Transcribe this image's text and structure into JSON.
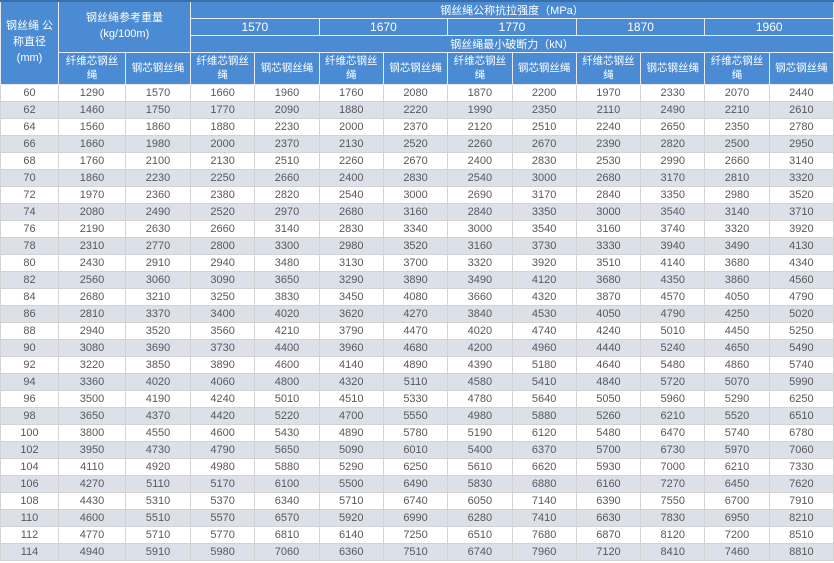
{
  "headers": {
    "diameter": "钢丝绳 公称直径 (mm)",
    "weight": "钢丝绳参考重量 (kg/100m)",
    "strength_title": "钢丝绳公称抗拉强度（MPa）",
    "strengths": [
      "1570",
      "1670",
      "1770",
      "1870",
      "1960"
    ],
    "breaking_title": "钢丝绳最小破断力（kN）",
    "fiber_core": "纤维芯钢丝绳",
    "steel_core": "钢芯钢丝绳"
  },
  "colors": {
    "header_bg": "#4B8BD3",
    "header_text": "#FFFFFF",
    "row_alt_bg": "#DBE0E9",
    "body_text": "#595959",
    "grid_line": "#D3D3D3",
    "top_edge": "#3A6FA9"
  },
  "chart_data": {
    "type": "table",
    "title": "钢丝绳公称抗拉强度（MPa）／钢丝绳最小破断力（kN）",
    "columns": [
      "钢丝绳 公称直径 (mm)",
      "参考重量 纤维芯钢丝绳 (kg/100m)",
      "参考重量 钢芯钢丝绳 (kg/100m)",
      "1570 纤维芯钢丝绳 (kN)",
      "1570 钢芯钢丝绳 (kN)",
      "1670 纤维芯钢丝绳 (kN)",
      "1670 钢芯钢丝绳 (kN)",
      "1770 纤维芯钢丝绳 (kN)",
      "1770 钢芯钢丝绳 (kN)",
      "1870 纤维芯钢丝绳 (kN)",
      "1870 钢芯钢丝绳 (kN)",
      "1960 纤维芯钢丝绳 (kN)",
      "1960 钢芯钢丝绳 (kN)"
    ],
    "rows": [
      [
        60,
        1290,
        1570,
        1660,
        1960,
        1760,
        2080,
        1870,
        2200,
        1970,
        2330,
        2070,
        2440
      ],
      [
        62,
        1460,
        1750,
        1770,
        2090,
        1880,
        2220,
        1990,
        2350,
        2110,
        2490,
        2210,
        2610
      ],
      [
        64,
        1560,
        1860,
        1880,
        2230,
        2000,
        2370,
        2120,
        2510,
        2240,
        2650,
        2350,
        2780
      ],
      [
        66,
        1660,
        1980,
        2000,
        2370,
        2130,
        2520,
        2260,
        2670,
        2390,
        2820,
        2500,
        2950
      ],
      [
        68,
        1760,
        2100,
        2130,
        2510,
        2260,
        2670,
        2400,
        2830,
        2530,
        2990,
        2660,
        3140
      ],
      [
        70,
        1860,
        2230,
        2250,
        2660,
        2400,
        2830,
        2540,
        3000,
        2680,
        3170,
        2810,
        3320
      ],
      [
        72,
        1970,
        2360,
        2380,
        2820,
        2540,
        3000,
        2690,
        3170,
        2840,
        3350,
        2980,
        3520
      ],
      [
        74,
        2080,
        2490,
        2520,
        2970,
        2680,
        3160,
        2840,
        3350,
        3000,
        3540,
        3140,
        3710
      ],
      [
        76,
        2190,
        2630,
        2660,
        3140,
        2830,
        3340,
        3000,
        3540,
        3160,
        3740,
        3320,
        3920
      ],
      [
        78,
        2310,
        2770,
        2800,
        3300,
        2980,
        3520,
        3160,
        3730,
        3330,
        3940,
        3490,
        4130
      ],
      [
        80,
        2430,
        2910,
        2940,
        3480,
        3130,
        3700,
        3320,
        3920,
        3510,
        4140,
        3680,
        4340
      ],
      [
        82,
        2560,
        3060,
        3090,
        3650,
        3290,
        3890,
        3490,
        4120,
        3680,
        4350,
        3860,
        4560
      ],
      [
        84,
        2680,
        3210,
        3250,
        3830,
        3450,
        4080,
        3660,
        4320,
        3870,
        4570,
        4050,
        4790
      ],
      [
        86,
        2810,
        3370,
        3400,
        4020,
        3620,
        4270,
        3840,
        4530,
        4050,
        4790,
        4250,
        5020
      ],
      [
        88,
        2940,
        3520,
        3560,
        4210,
        3790,
        4470,
        4020,
        4740,
        4240,
        5010,
        4450,
        5250
      ],
      [
        90,
        3080,
        3690,
        3730,
        4400,
        3960,
        4680,
        4200,
        4960,
        4440,
        5240,
        4650,
        5490
      ],
      [
        92,
        3220,
        3850,
        3890,
        4600,
        4140,
        4890,
        4390,
        5180,
        4640,
        5480,
        4860,
        5740
      ],
      [
        94,
        3360,
        4020,
        4060,
        4800,
        4320,
        5110,
        4580,
        5410,
        4840,
        5720,
        5070,
        5990
      ],
      [
        96,
        3500,
        4190,
        4240,
        5010,
        4510,
        5330,
        4780,
        5640,
        5050,
        5960,
        5290,
        6250
      ],
      [
        98,
        3650,
        4370,
        4420,
        5220,
        4700,
        5550,
        4980,
        5880,
        5260,
        6210,
        5520,
        6510
      ],
      [
        100,
        3800,
        4550,
        4600,
        5430,
        4890,
        5780,
        5190,
        6120,
        5480,
        6470,
        5740,
        6780
      ],
      [
        102,
        3950,
        4730,
        4790,
        5650,
        5090,
        6010,
        5400,
        6370,
        5700,
        6730,
        5970,
        7060
      ],
      [
        104,
        4110,
        4920,
        4980,
        5880,
        5290,
        6250,
        5610,
        6620,
        5930,
        7000,
        6210,
        7330
      ],
      [
        106,
        4270,
        5110,
        5170,
        6100,
        5500,
        6490,
        5830,
        6880,
        6160,
        7270,
        6450,
        7620
      ],
      [
        108,
        4430,
        5310,
        5370,
        6340,
        5710,
        6740,
        6050,
        7140,
        6390,
        7550,
        6700,
        7910
      ],
      [
        110,
        4600,
        5510,
        5570,
        6570,
        5920,
        6990,
        6280,
        7410,
        6630,
        7830,
        6950,
        8210
      ],
      [
        112,
        4770,
        5710,
        5770,
        6810,
        6140,
        7250,
        6510,
        7680,
        6870,
        8120,
        7200,
        8510
      ],
      [
        114,
        4940,
        5910,
        5980,
        7060,
        6360,
        7510,
        6740,
        7960,
        7120,
        8410,
        7460,
        8810
      ]
    ]
  }
}
